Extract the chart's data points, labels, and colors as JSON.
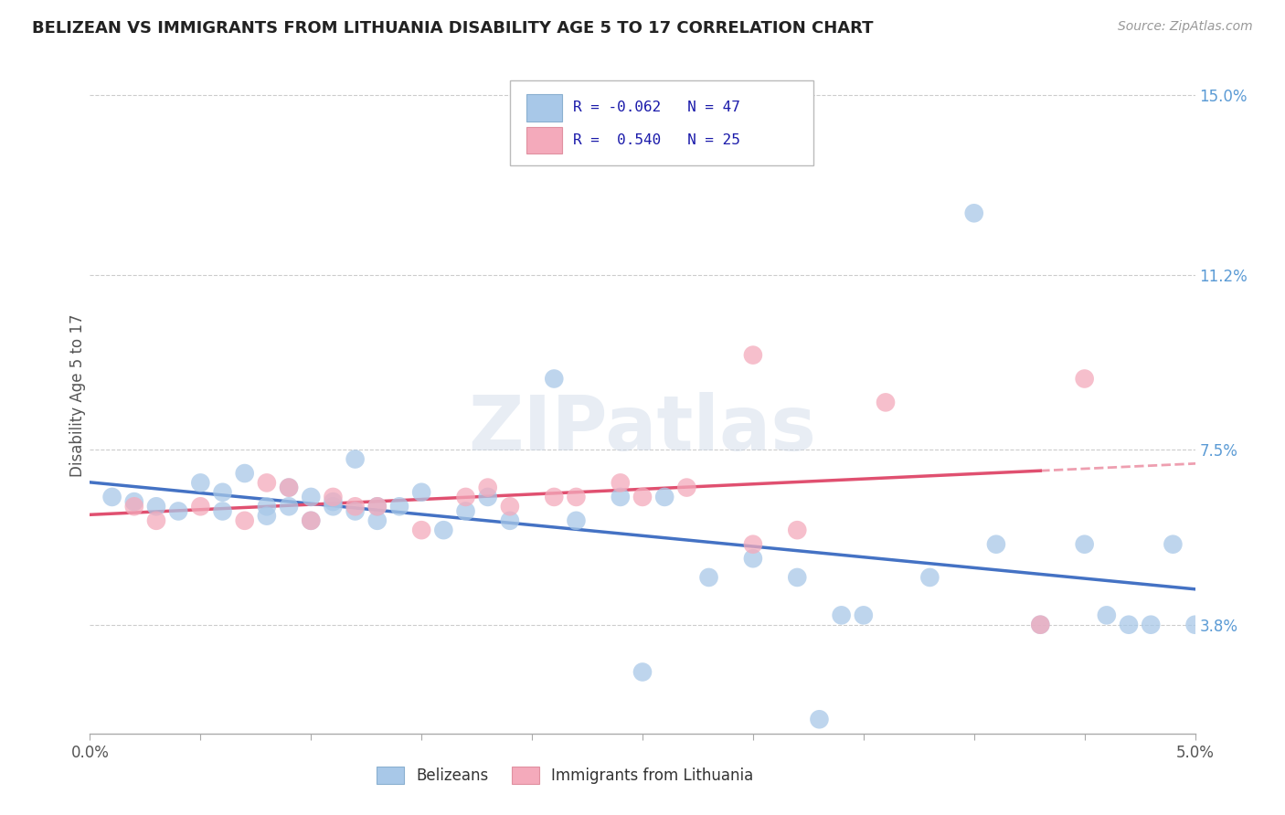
{
  "title": "BELIZEAN VS IMMIGRANTS FROM LITHUANIA DISABILITY AGE 5 TO 17 CORRELATION CHART",
  "source": "Source: ZipAtlas.com",
  "ylabel": "Disability Age 5 to 17",
  "ylabel_right_ticks": [
    "3.8%",
    "7.5%",
    "11.2%",
    "15.0%"
  ],
  "ylabel_right_vals": [
    0.038,
    0.075,
    0.112,
    0.15
  ],
  "x_min": 0.0,
  "x_max": 0.05,
  "y_min": 0.015,
  "y_max": 0.158,
  "belizean_R": -0.062,
  "belizean_N": 47,
  "lithuania_R": 0.54,
  "lithuania_N": 25,
  "belizean_color": "#a8c8e8",
  "lithuania_color": "#f4aabb",
  "belizean_line_color": "#4472c4",
  "lithuania_line_color": "#e05070",
  "legend_label_1": "Belizeans",
  "legend_label_2": "Immigrants from Lithuania",
  "watermark": "ZIPatlas",
  "bx": [
    0.001,
    0.002,
    0.003,
    0.004,
    0.005,
    0.006,
    0.006,
    0.007,
    0.008,
    0.008,
    0.009,
    0.009,
    0.01,
    0.01,
    0.011,
    0.011,
    0.012,
    0.012,
    0.013,
    0.013,
    0.014,
    0.015,
    0.016,
    0.017,
    0.018,
    0.019,
    0.021,
    0.022,
    0.024,
    0.026,
    0.028,
    0.03,
    0.032,
    0.034,
    0.035,
    0.038,
    0.04,
    0.041,
    0.043,
    0.045,
    0.047,
    0.048,
    0.049,
    0.05,
    0.025,
    0.033,
    0.046
  ],
  "by": [
    0.065,
    0.064,
    0.063,
    0.062,
    0.068,
    0.066,
    0.062,
    0.07,
    0.063,
    0.061,
    0.067,
    0.063,
    0.065,
    0.06,
    0.064,
    0.063,
    0.073,
    0.062,
    0.063,
    0.06,
    0.063,
    0.066,
    0.058,
    0.062,
    0.065,
    0.06,
    0.09,
    0.06,
    0.065,
    0.065,
    0.048,
    0.052,
    0.048,
    0.04,
    0.04,
    0.048,
    0.125,
    0.055,
    0.038,
    0.055,
    0.038,
    0.038,
    0.055,
    0.038,
    0.028,
    0.018,
    0.04
  ],
  "lx": [
    0.002,
    0.003,
    0.005,
    0.007,
    0.008,
    0.009,
    0.01,
    0.011,
    0.012,
    0.013,
    0.015,
    0.017,
    0.018,
    0.019,
    0.021,
    0.022,
    0.024,
    0.025,
    0.027,
    0.03,
    0.03,
    0.032,
    0.036,
    0.043,
    0.045
  ],
  "ly": [
    0.063,
    0.06,
    0.063,
    0.06,
    0.068,
    0.067,
    0.06,
    0.065,
    0.063,
    0.063,
    0.058,
    0.065,
    0.067,
    0.063,
    0.065,
    0.065,
    0.068,
    0.065,
    0.067,
    0.055,
    0.095,
    0.058,
    0.085,
    0.038,
    0.09
  ]
}
